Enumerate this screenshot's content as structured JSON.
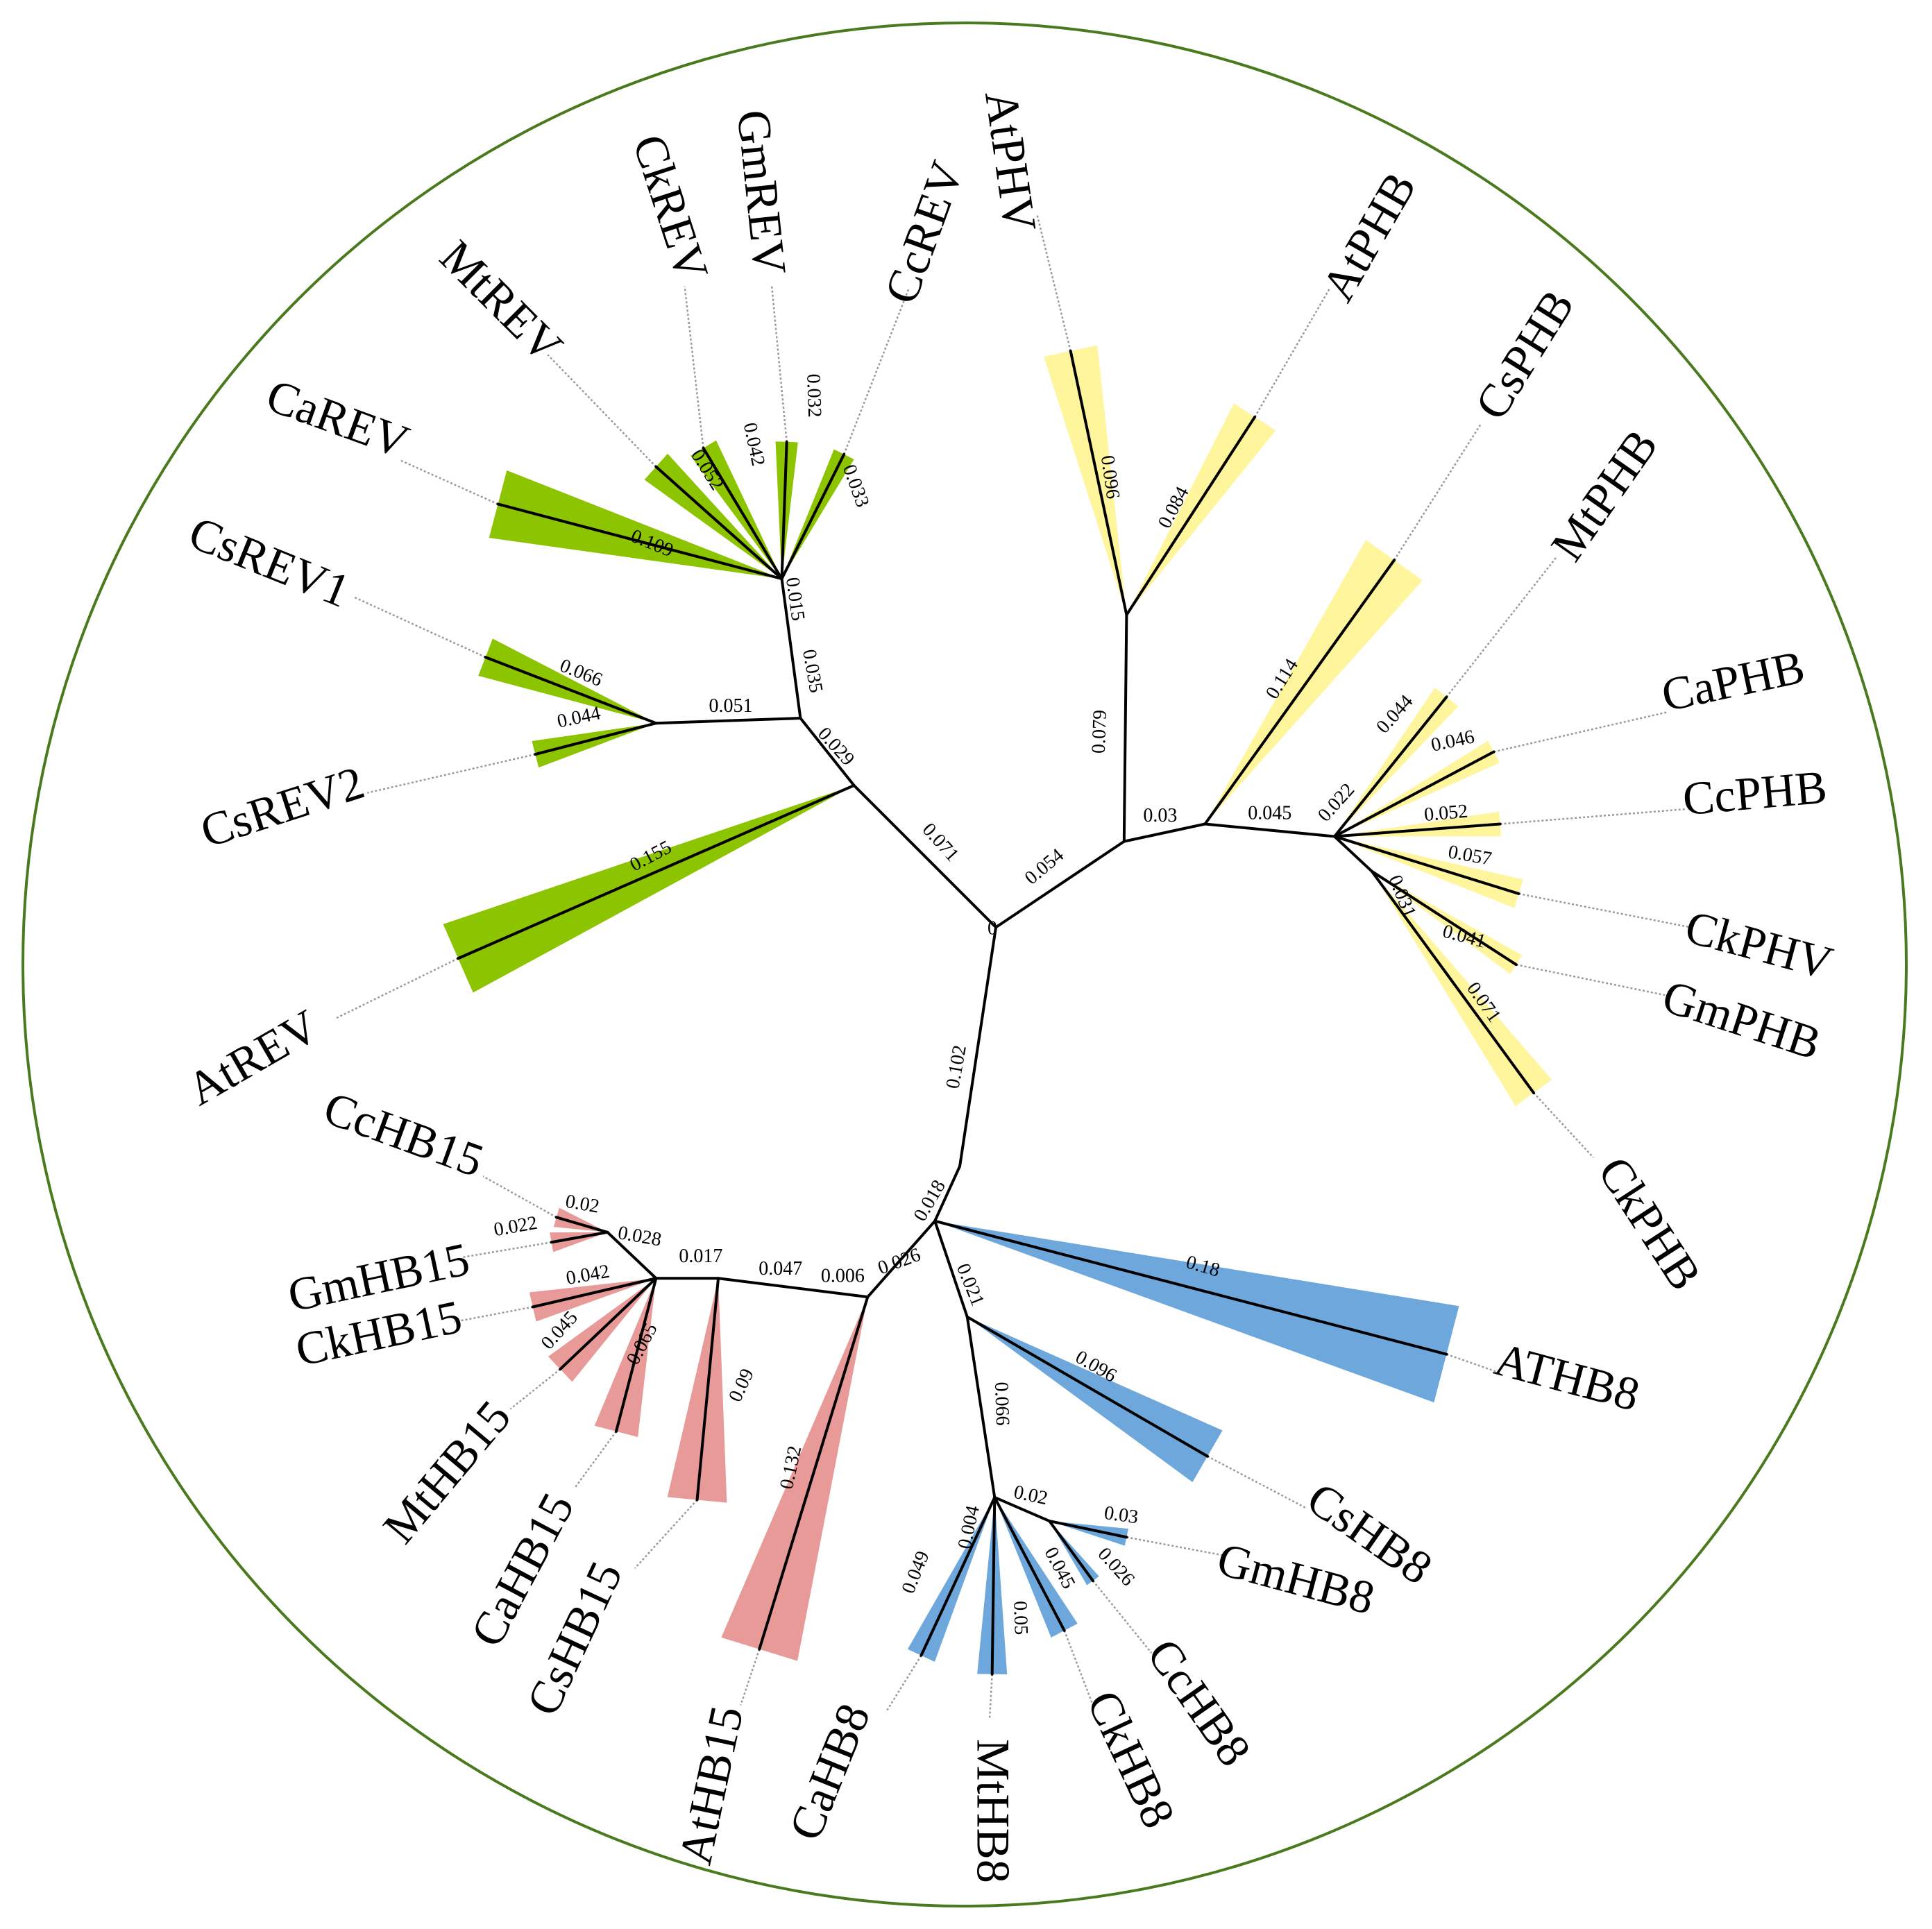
{
  "colors": {
    "REV": "#8cc400",
    "PHB": "#fff59c",
    "HB15": "#e89a98",
    "HB8": "#6ea7dc",
    "circle": "#4a7a1e",
    "branch": "#000000",
    "leader": "#9a9a9a"
  },
  "root_label": "0",
  "internal_branches": [
    {
      "name": "branch-root-rev",
      "length": "0.071"
    },
    {
      "name": "branch-rev-a",
      "length": "0.029"
    },
    {
      "name": "branch-rev-b",
      "length": "0.035"
    },
    {
      "name": "branch-rev-c",
      "length": "0.015"
    },
    {
      "name": "branch-csrev",
      "length": "0.051"
    },
    {
      "name": "branch-root-phb",
      "length": "0.054"
    },
    {
      "name": "branch-phb-atphv",
      "length": "0.079"
    },
    {
      "name": "branch-phb-a",
      "length": "0.03"
    },
    {
      "name": "branch-phb-b",
      "length": "0.045"
    },
    {
      "name": "branch-phb-c",
      "length": "0.022"
    },
    {
      "name": "branch-phb-d",
      "length": "0.031"
    },
    {
      "name": "branch-root-hb",
      "length": "0.102"
    },
    {
      "name": "branch-hb-a",
      "length": "0.018"
    },
    {
      "name": "branch-hb15-a",
      "length": "0.026"
    },
    {
      "name": "branch-hb15-b",
      "length": "0.006"
    },
    {
      "name": "branch-hb15-c",
      "length": "0.047"
    },
    {
      "name": "branch-hb15-d",
      "length": "0.017"
    },
    {
      "name": "branch-hb15-e",
      "length": "0.028"
    },
    {
      "name": "branch-hb8-a",
      "length": "0.021"
    },
    {
      "name": "branch-hb8-b",
      "length": "0.066"
    },
    {
      "name": "branch-hb8-c",
      "length": "0.004"
    },
    {
      "name": "branch-hb8-d",
      "length": "0.02"
    }
  ],
  "leaves": [
    {
      "label": "AtREV",
      "length": "0.155",
      "group": "REV"
    },
    {
      "label": "CaREV",
      "length": "0.109",
      "group": "REV"
    },
    {
      "label": "MtREV",
      "length": "0.052",
      "group": "REV"
    },
    {
      "label": "CkREV",
      "length": "0.042",
      "group": "REV"
    },
    {
      "label": "GmREV",
      "length": "0.032",
      "group": "REV"
    },
    {
      "label": "CcREV",
      "length": "0.033",
      "group": "REV"
    },
    {
      "label": "CsREV1",
      "length": "0.066",
      "group": "REV"
    },
    {
      "label": "CsREV2",
      "length": "0.044",
      "group": "REV"
    },
    {
      "label": "AtPHV",
      "length": "0.096",
      "group": "PHB"
    },
    {
      "label": "AtPHB",
      "length": "0.084",
      "group": "PHB"
    },
    {
      "label": "CsPHB",
      "length": "0.114",
      "group": "PHB"
    },
    {
      "label": "MtPHB",
      "length": "0.044",
      "group": "PHB"
    },
    {
      "label": "CaPHB",
      "length": "0.046",
      "group": "PHB"
    },
    {
      "label": "CcPHB",
      "length": "0.052",
      "group": "PHB"
    },
    {
      "label": "CkPHV",
      "length": "0.057",
      "group": "PHB"
    },
    {
      "label": "GmPHB",
      "length": "0.041",
      "group": "PHB"
    },
    {
      "label": "CkPHB",
      "length": "0.071",
      "group": "PHB"
    },
    {
      "label": "ATHB8",
      "length": "0.18",
      "group": "HB8"
    },
    {
      "label": "CsHB8",
      "length": "0.096",
      "group": "HB8"
    },
    {
      "label": "GmHB8",
      "length": "0.03",
      "group": "HB8"
    },
    {
      "label": "CcHB8",
      "length": "0.026",
      "group": "HB8"
    },
    {
      "label": "CkHB8",
      "length": "0.045",
      "group": "HB8"
    },
    {
      "label": "MtHB8",
      "length": "0.05",
      "group": "HB8"
    },
    {
      "label": "CaHB8",
      "length": "0.049",
      "group": "HB8"
    },
    {
      "label": "CcHB15",
      "length": "0.02",
      "group": "HB15"
    },
    {
      "label": "GmHB15",
      "length": "0.022",
      "group": "HB15"
    },
    {
      "label": "CkHB15",
      "length": "0.042",
      "group": "HB15"
    },
    {
      "label": "MtHB15",
      "length": "0.045",
      "group": "HB15"
    },
    {
      "label": "CaHB15",
      "length": "0.065",
      "group": "HB15"
    },
    {
      "label": "CsHB15",
      "length": "0.09",
      "group": "HB15"
    },
    {
      "label": "AtHB15",
      "length": "0.132",
      "group": "HB15"
    }
  ]
}
